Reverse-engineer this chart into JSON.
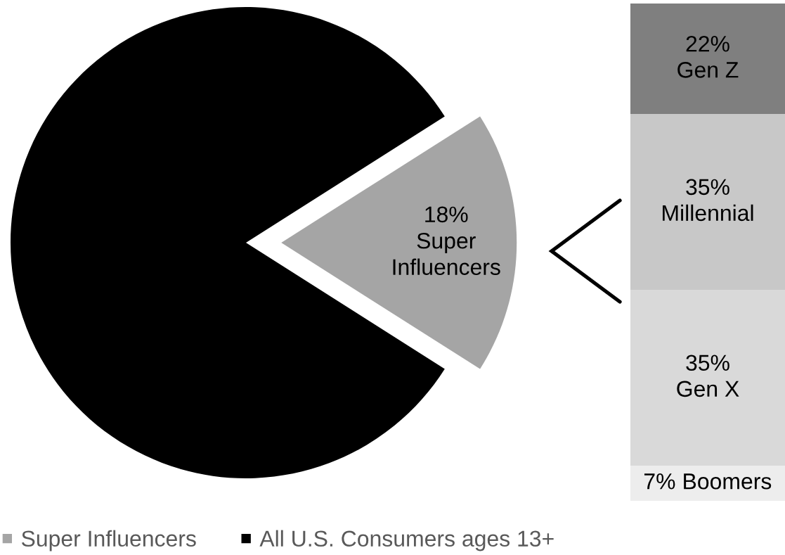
{
  "chart_data": [
    {
      "type": "pie",
      "categories": [
        "Super Influencers",
        "All U.S. Consumers ages 13+"
      ],
      "values": [
        18,
        82
      ],
      "colors": [
        "#a5a5a5",
        "#000000"
      ],
      "value_labels": [
        "18%",
        null
      ],
      "legend": "bottom"
    },
    {
      "type": "bar",
      "stacked": true,
      "categories": [
        null
      ],
      "series": [
        {
          "name": "Boomers",
          "color": "#ededed",
          "values": [
            7
          ],
          "value_labels": [
            "7%"
          ]
        },
        {
          "name": "Gen X",
          "color": "#d9d9d9",
          "values": [
            35
          ],
          "value_labels": [
            "35%"
          ]
        },
        {
          "name": "Millennial",
          "color": "#c8c8c8",
          "values": [
            35
          ],
          "value_labels": [
            "35%"
          ]
        },
        {
          "name": "Gen Z",
          "color": "#7f7f7f",
          "values": [
            22
          ],
          "value_labels": [
            "22%"
          ]
        }
      ]
    }
  ]
}
